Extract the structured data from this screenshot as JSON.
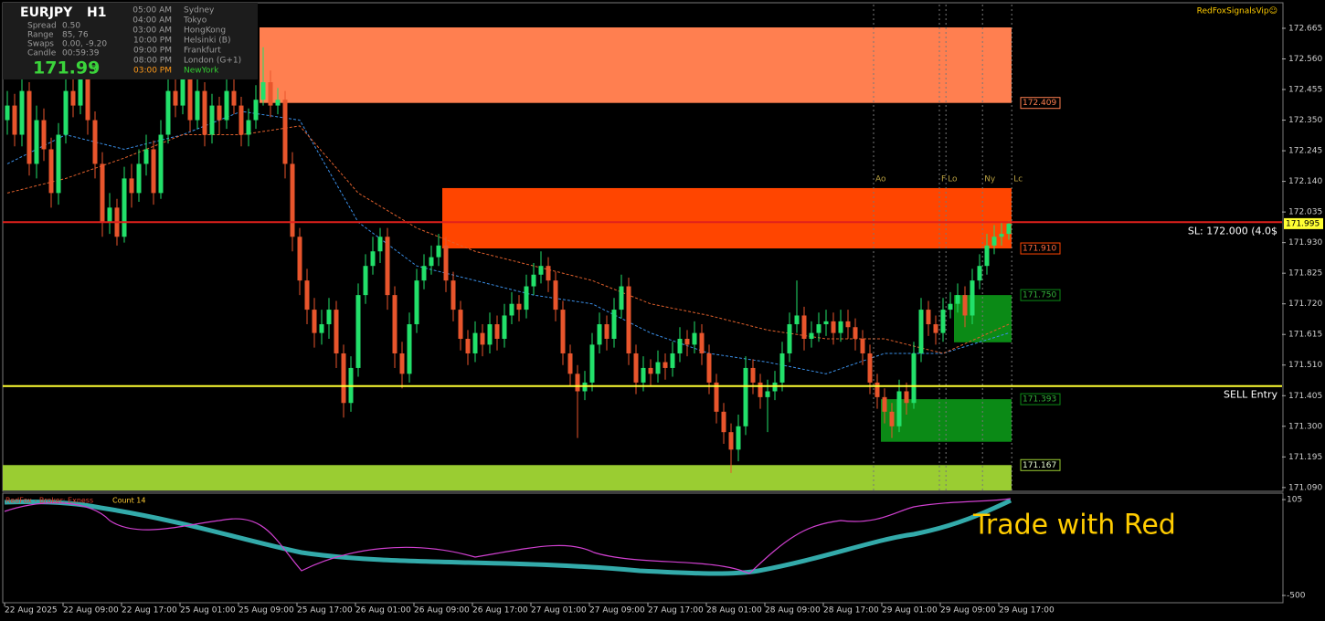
{
  "info_panel": {
    "symbol": "EURJPY",
    "timeframe": "H1",
    "rows": [
      {
        "label": "Spread",
        "value": "0.50"
      },
      {
        "label": "Range",
        "value": "85, 76"
      },
      {
        "label": "Swaps",
        "value": "0.00, -9.20"
      },
      {
        "label": "Candle",
        "value": "00:59:39"
      }
    ],
    "price": "171.99",
    "price_digit": "5",
    "sessions": [
      {
        "time": "05:00 AM",
        "name": "Sydney",
        "color": "#9a9a9a"
      },
      {
        "time": "04:00 AM",
        "name": "Tokyo",
        "color": "#9a9a9a"
      },
      {
        "time": "03:00 AM",
        "name": "HongKong",
        "color": "#9a9a9a"
      },
      {
        "time": "10:00 PM",
        "name": "Helsinki  (B)",
        "color": "#9a9a9a"
      },
      {
        "time": "09:00 PM",
        "name": "Frankfurt",
        "color": "#9a9a9a"
      },
      {
        "time": "08:00 PM",
        "name": "London  (G+1)",
        "color": "#9a9a9a"
      },
      {
        "time": "03:00 PM",
        "name": "NewYork",
        "color": "#ff9a1a",
        "name_color": "#33cc33"
      }
    ]
  },
  "watermark": "RedFoxSignalsVip☺",
  "chart_data": {
    "type": "candlestick",
    "bull_color": "#22e06a",
    "bear_color": "#e8552c",
    "first_open": 172.35,
    "close": [
      172.4,
      172.3,
      172.45,
      172.2,
      172.35,
      172.25,
      172.1,
      172.3,
      172.45,
      172.4,
      172.5,
      172.35,
      172.2,
      172.0,
      172.05,
      171.95,
      172.15,
      172.1,
      172.2,
      172.25,
      172.1,
      172.3,
      172.45,
      172.4,
      172.5,
      172.35,
      172.45,
      172.3,
      172.4,
      172.35,
      172.45,
      172.4,
      172.3,
      172.35,
      172.42,
      172.48,
      172.4,
      172.42,
      172.2,
      171.95,
      171.8,
      171.7,
      171.62,
      171.65,
      171.7,
      171.55,
      171.38,
      171.5,
      171.75,
      171.85,
      171.9,
      171.95,
      171.75,
      171.55,
      171.48,
      171.65,
      171.8,
      171.85,
      171.88,
      171.92,
      171.8,
      171.7,
      171.6,
      171.55,
      171.62,
      171.58,
      171.65,
      171.6,
      171.68,
      171.72,
      171.7,
      171.78,
      171.82,
      171.85,
      171.8,
      171.7,
      171.55,
      171.48,
      171.42,
      171.45,
      171.58,
      171.65,
      171.6,
      171.7,
      171.78,
      171.55,
      171.45,
      171.5,
      171.48,
      171.52,
      171.5,
      171.55,
      171.6,
      171.58,
      171.62,
      171.55,
      171.45,
      171.35,
      171.28,
      171.22,
      171.3,
      171.5,
      171.45,
      171.4,
      171.42,
      171.45,
      171.55,
      171.65,
      171.68,
      171.6,
      171.62,
      171.65,
      171.66,
      171.62,
      171.66,
      171.64,
      171.6,
      171.55,
      171.45,
      171.4,
      171.35,
      171.3,
      171.42,
      171.38,
      171.55,
      171.7,
      171.65,
      171.62,
      171.7,
      171.72,
      171.75,
      171.68,
      171.8,
      171.85,
      171.92,
      171.95,
      171.96,
      171.995
    ],
    "high": [
      172.45,
      172.44,
      172.5,
      172.48,
      172.4,
      172.39,
      172.29,
      172.34,
      172.5,
      172.52,
      172.55,
      172.54,
      172.38,
      172.24,
      172.1,
      172.08,
      172.19,
      172.2,
      172.25,
      172.3,
      172.28,
      172.35,
      172.5,
      172.52,
      172.55,
      172.53,
      172.49,
      172.48,
      172.44,
      172.43,
      172.49,
      172.5,
      172.43,
      172.39,
      172.47,
      172.6,
      172.52,
      172.46,
      172.45,
      172.24,
      171.98,
      171.84,
      171.74,
      171.7,
      171.74,
      171.73,
      171.58,
      171.54,
      171.79,
      171.89,
      171.95,
      171.98,
      171.98,
      171.78,
      171.59,
      171.69,
      171.84,
      171.89,
      171.92,
      171.96,
      171.95,
      171.83,
      171.73,
      171.63,
      171.66,
      171.65,
      171.69,
      171.68,
      171.72,
      171.76,
      171.75,
      171.82,
      171.86,
      171.9,
      171.88,
      171.83,
      171.73,
      171.58,
      171.51,
      171.49,
      171.62,
      171.69,
      171.68,
      171.74,
      171.82,
      171.81,
      171.58,
      171.54,
      171.53,
      171.56,
      171.55,
      171.59,
      171.64,
      171.63,
      171.66,
      171.65,
      171.58,
      171.48,
      171.38,
      171.31,
      171.34,
      171.54,
      171.53,
      171.48,
      171.46,
      171.49,
      171.59,
      171.69,
      171.8,
      171.71,
      171.66,
      171.69,
      171.7,
      171.69,
      171.7,
      171.7,
      171.67,
      171.63,
      171.58,
      171.48,
      171.43,
      171.38,
      171.46,
      171.45,
      171.59,
      171.74,
      171.73,
      171.68,
      171.74,
      171.76,
      171.79,
      171.78,
      171.84,
      171.89,
      171.96,
      171.99,
      172.0,
      172.005
    ],
    "low": [
      172.3,
      172.26,
      172.26,
      172.16,
      172.15,
      172.21,
      172.05,
      172.06,
      172.27,
      172.36,
      172.37,
      172.3,
      172.15,
      171.95,
      171.96,
      171.92,
      171.93,
      172.05,
      172.07,
      172.16,
      172.06,
      172.08,
      172.27,
      172.36,
      172.37,
      172.31,
      172.32,
      172.26,
      172.27,
      172.3,
      172.32,
      172.37,
      172.26,
      172.26,
      172.32,
      172.4,
      172.36,
      172.37,
      172.15,
      171.9,
      171.75,
      171.65,
      171.57,
      171.58,
      171.6,
      171.5,
      171.33,
      171.35,
      171.47,
      171.72,
      171.82,
      171.86,
      171.7,
      171.5,
      171.43,
      171.45,
      171.62,
      171.77,
      171.82,
      171.85,
      171.76,
      171.66,
      171.56,
      171.51,
      171.52,
      171.54,
      171.55,
      171.56,
      171.57,
      171.65,
      171.66,
      171.67,
      171.75,
      171.79,
      171.76,
      171.66,
      171.51,
      171.44,
      171.26,
      171.39,
      171.42,
      171.55,
      171.56,
      171.57,
      171.67,
      171.51,
      171.41,
      171.42,
      171.44,
      171.45,
      171.46,
      171.47,
      171.52,
      171.54,
      171.55,
      171.51,
      171.41,
      171.31,
      171.24,
      171.14,
      171.18,
      171.27,
      171.41,
      171.36,
      171.28,
      171.39,
      171.42,
      171.52,
      171.62,
      171.56,
      171.57,
      171.59,
      171.61,
      171.58,
      171.59,
      171.6,
      171.56,
      171.51,
      171.41,
      171.36,
      171.31,
      171.26,
      171.28,
      171.34,
      171.36,
      171.52,
      171.61,
      171.58,
      171.59,
      171.67,
      171.69,
      171.64,
      171.65,
      171.77,
      171.82,
      171.89,
      171.92,
      171.94
    ],
    "ylim": [
      171.077,
      172.762
    ],
    "yticks": [
      172.665,
      {
        "value": 172.56,
        "label": "172.560"
      },
      172.455,
      {
        "value": 172.35,
        "label": "172.350"
      },
      172.245,
      {
        "value": 172.14,
        "label": "172.140"
      },
      172.035,
      {
        "value": 171.93,
        "label": "171.930"
      },
      171.825,
      {
        "value": 171.72,
        "label": "171.720"
      },
      171.615,
      {
        "value": 171.51,
        "label": "171.510"
      },
      171.405,
      {
        "value": 171.3,
        "label": "171.300"
      },
      171.195,
      {
        "value": 171.09,
        "label": "171.090"
      }
    ],
    "xticks": [
      {
        "value": 0,
        "label": "22 Aug 2025"
      },
      {
        "value": 8,
        "label": "22 Aug 09:00"
      },
      {
        "value": 16,
        "label": "22 Aug 17:00"
      },
      {
        "value": 24,
        "label": "25 Aug 01:00"
      },
      {
        "value": 32,
        "label": "25 Aug 09:00"
      },
      {
        "value": 40,
        "label": "25 Aug 17:00"
      },
      {
        "value": 48,
        "label": "26 Aug 01:00"
      },
      {
        "value": 56,
        "label": "26 Aug 09:00"
      },
      {
        "value": 64,
        "label": "26 Aug 17:00"
      },
      {
        "value": 72,
        "label": "27 Aug 01:00"
      },
      {
        "value": 80,
        "label": "27 Aug 09:00"
      },
      {
        "value": 88,
        "label": "27 Aug 17:00"
      },
      {
        "value": 96,
        "label": "28 Aug 01:00"
      },
      {
        "value": 104,
        "label": "28 Aug 09:00"
      },
      {
        "value": 112,
        "label": "28 Aug 17:00"
      },
      {
        "value": 120,
        "label": "29 Aug 01:00"
      },
      {
        "value": 128,
        "label": "29 Aug 09:00"
      },
      {
        "value": 136,
        "label": "29 Aug 17:00"
      }
    ],
    "zones": [
      {
        "from": 172.409,
        "to": 172.668,
        "start": 35,
        "end": 137,
        "color": "#ff7f50",
        "text_color": "#ff7f50"
      },
      {
        "from": {
          "value": 171.91,
          "label": "171.910"
        },
        "to": 172.117,
        "start": 60,
        "end": 137,
        "color": "#ff4500",
        "text_color": "#ff6a40"
      },
      {
        "from": {
          "value": 171.75,
          "label": "171.750"
        },
        "to": 171.588,
        "start": 130,
        "end": 137,
        "color": "#0b8a16",
        "text_color": "#33b33a"
      },
      {
        "from": 171.393,
        "to": 171.247,
        "start": 120,
        "end": 137,
        "color": "#0b8a16",
        "text_color": "#33b33a"
      },
      {
        "from": 171.167,
        "to": 171.08,
        "start": 0,
        "end": 137,
        "color": "#9acd32",
        "text_color": "#e8ffd0"
      }
    ],
    "levels": [
      {
        "value": 172.0,
        "label": "SL: 172.000 (4.0$",
        "color": "#e0201c"
      },
      {
        "value": 171.438,
        "label": "SELL Entry",
        "color": "#ffff33"
      }
    ],
    "current_price": 171.995,
    "markers": [
      {
        "label": "Ao",
        "index": 118.5
      },
      {
        "label": "F",
        "index": 127.5
      },
      {
        "label": "Lo",
        "index": 128.4
      },
      {
        "label": "Ny",
        "index": 133.4
      },
      {
        "label": "Lc",
        "index": 137.4
      }
    ],
    "moving_averages": [
      {
        "color": "#3a8ee6",
        "x": [
          0,
          8,
          16,
          24,
          32,
          40,
          48,
          56,
          64,
          72,
          80,
          88,
          96,
          104,
          112,
          120,
          128,
          137
        ],
        "values": [
          172.2,
          172.3,
          172.25,
          172.3,
          172.38,
          172.35,
          172.0,
          171.85,
          171.8,
          171.75,
          171.72,
          171.62,
          171.55,
          171.52,
          171.48,
          171.55,
          171.55,
          171.62
        ]
      },
      {
        "color": "#e0602c",
        "x": [
          0,
          8,
          16,
          24,
          32,
          40,
          48,
          56,
          64,
          72,
          80,
          88,
          96,
          104,
          112,
          120,
          128,
          137
        ],
        "values": [
          172.1,
          172.15,
          172.22,
          172.3,
          172.3,
          172.33,
          172.1,
          171.98,
          171.9,
          171.85,
          171.8,
          171.72,
          171.68,
          171.63,
          171.6,
          171.6,
          171.55,
          171.65
        ]
      }
    ]
  },
  "oscillator": {
    "name": "RedFox -  Broker: Exness",
    "count": "Count  14",
    "ylim": [
      -546,
      140
    ],
    "yticks": [
      105,
      -500
    ],
    "caption": "Trade with Red"
  }
}
